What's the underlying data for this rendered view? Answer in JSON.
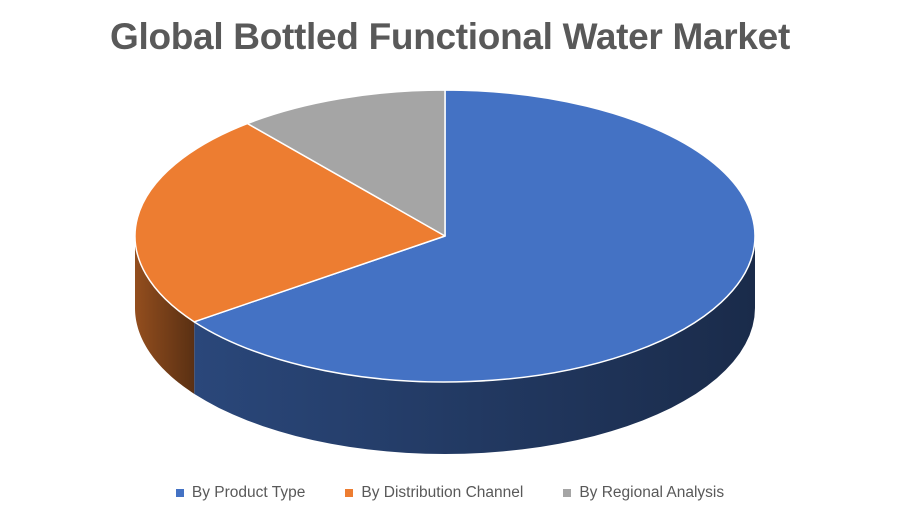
{
  "chart_data": {
    "type": "pie",
    "title": "Global Bottled Functional Water Market",
    "categories": [
      "By Product Type",
      "By Distribution Channel",
      "By Regional Analysis"
    ],
    "values": [
      65,
      24,
      11
    ],
    "colors": [
      "#4472C4",
      "#ED7D31",
      "#A5A5A5"
    ],
    "legend_position": "bottom",
    "style": "3d"
  }
}
